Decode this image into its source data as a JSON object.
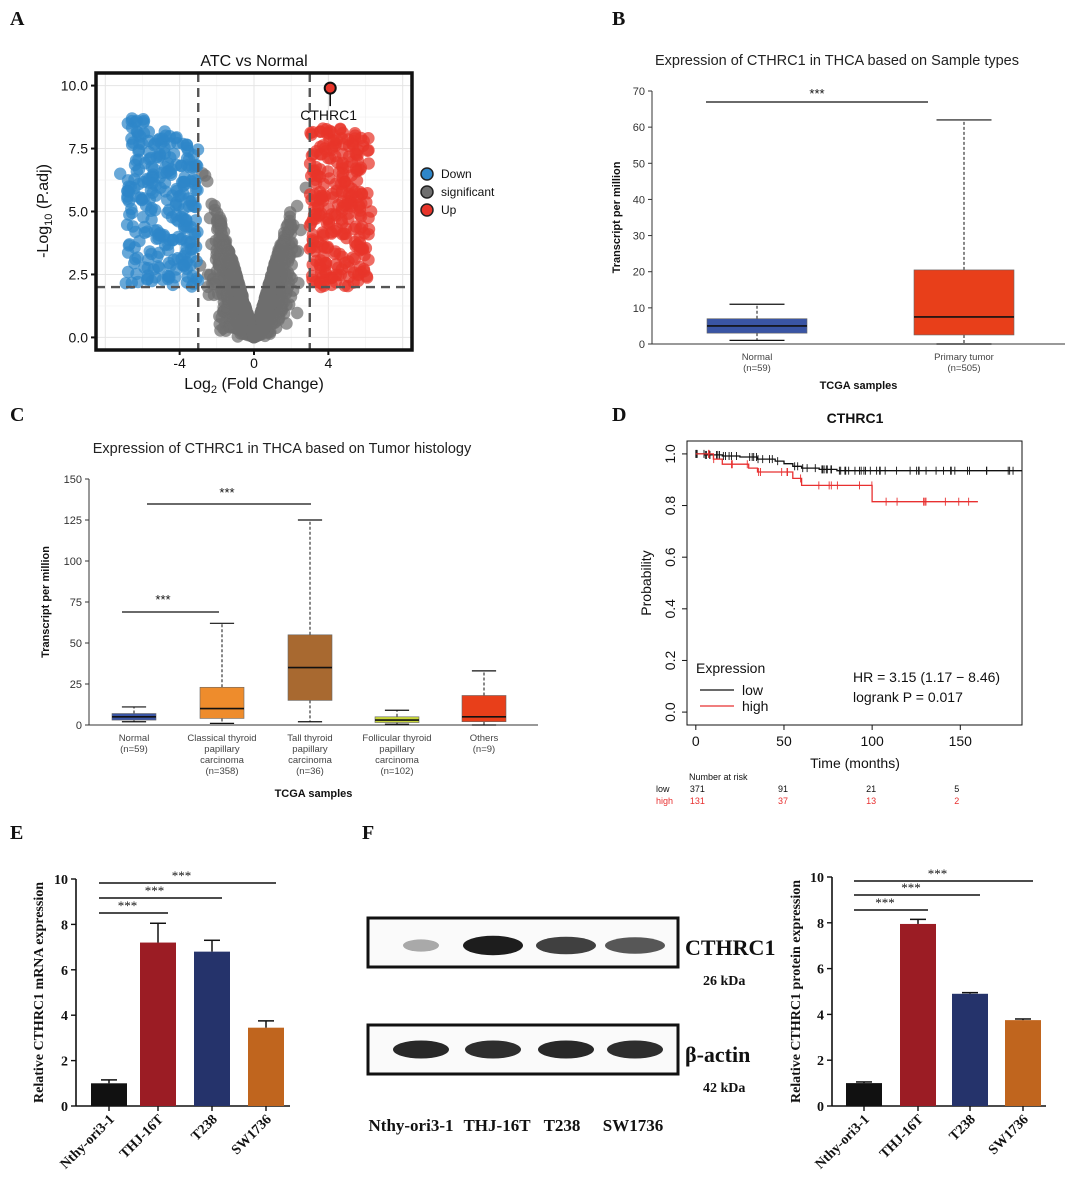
{
  "panel_labels": [
    "A",
    "B",
    "C",
    "D",
    "E",
    "F"
  ],
  "chart_data": [
    {
      "panel": "A",
      "type": "scatter",
      "title": "ATC vs Normal",
      "xlabel": "Log2 (Fold Change)",
      "ylabel": "-Log10 (P.adj)",
      "xlim": [
        -8.5,
        8.5
      ],
      "ylim": [
        -0.5,
        10.5
      ],
      "x_ticks": [
        "-4",
        "0",
        "4"
      ],
      "y_ticks": [
        "0.0",
        "2.5",
        "5.0",
        "7.5",
        "10.0"
      ],
      "thresholds": {
        "log2fc": 3,
        "neg_log10_padj": 2
      },
      "legend": [
        "Down",
        "significant",
        "Up"
      ],
      "highlight": {
        "label": "CTHRC1",
        "x": 4.1,
        "y": 9.9
      },
      "colors": {
        "down": "#2e86c9",
        "ns": "#6f6f6f",
        "up": "#e8352a"
      }
    },
    {
      "panel": "B",
      "type": "box",
      "title": "Expression of CTHRC1 in THCA based on Sample types",
      "xlabel": "TCGA samples",
      "ylabel": "Transcript per million",
      "ylim": [
        0,
        70
      ],
      "y_ticks": [
        "0",
        "10",
        "20",
        "30",
        "40",
        "50",
        "60",
        "70"
      ],
      "boxes": [
        {
          "name": "Normal",
          "n": "(n=59)",
          "min": 1,
          "q1": 3,
          "median": 5,
          "q3": 7,
          "max": 11,
          "color": "#3a55a4"
        },
        {
          "name": "Primary tumor",
          "n": "(n=505)",
          "min": 0,
          "q1": 2.5,
          "median": 7.5,
          "q3": 20.5,
          "max": 62,
          "color": "#e83f1a"
        }
      ],
      "significance": "***"
    },
    {
      "panel": "C",
      "type": "box",
      "title": "Expression of CTHRC1 in THCA based on Tumor histology",
      "xlabel": "TCGA samples",
      "ylabel": "Transcript per million",
      "ylim": [
        0,
        150
      ],
      "y_ticks": [
        "0",
        "25",
        "50",
        "75",
        "100",
        "125",
        "150"
      ],
      "boxes": [
        {
          "name": [
            "Normal"
          ],
          "n": "(n=59)",
          "min": 2,
          "q1": 3,
          "median": 5,
          "q3": 7,
          "max": 11,
          "color": "#3a55a4"
        },
        {
          "name": [
            "Classical thyroid",
            "papillary",
            "carcinoma"
          ],
          "n": "(n=358)",
          "min": 1,
          "q1": 4,
          "median": 10,
          "q3": 23,
          "max": 62,
          "color": "#ee8c2c"
        },
        {
          "name": [
            "Tall thyroid",
            "papillary",
            "carcinoma"
          ],
          "n": "(n=36)",
          "min": 2,
          "q1": 15,
          "median": 35,
          "q3": 55,
          "max": 125,
          "color": "#a86930"
        },
        {
          "name": [
            "Follicular thyroid",
            "papillary",
            "carcinoma"
          ],
          "n": "(n=102)",
          "min": 0.5,
          "q1": 1.5,
          "median": 3,
          "q3": 5,
          "max": 9,
          "color": "#c8d63a"
        },
        {
          "name": [
            "Others"
          ],
          "n": "(n=9)",
          "min": 0,
          "q1": 2,
          "median": 5,
          "q3": 18,
          "max": 33,
          "color": "#e83f1a"
        }
      ],
      "significance": [
        "***",
        "***"
      ]
    },
    {
      "panel": "D",
      "type": "line",
      "title": "CTHRC1",
      "xlabel": "Time (months)",
      "ylabel": "Probability",
      "xlim": [
        -5,
        185
      ],
      "ylim": [
        -0.05,
        1.05
      ],
      "x_ticks": [
        "0",
        "50",
        "100",
        "150"
      ],
      "y_ticks": [
        "0.0",
        "0.2",
        "0.4",
        "0.6",
        "0.8",
        "1.0"
      ],
      "legend_title": "Expression",
      "series": [
        {
          "name": "low",
          "color": "#111111",
          "x": [
            0,
            5,
            15,
            25,
            35,
            45,
            50,
            55,
            60,
            70,
            80,
            185
          ],
          "y": [
            1.0,
            0.996,
            0.992,
            0.988,
            0.98,
            0.972,
            0.962,
            0.952,
            0.945,
            0.94,
            0.935,
            0.935
          ]
        },
        {
          "name": "high",
          "color": "#e83030",
          "x": [
            0,
            10,
            15,
            30,
            35,
            55,
            60,
            100,
            160
          ],
          "y": [
            1.0,
            0.98,
            0.96,
            0.945,
            0.93,
            0.905,
            0.878,
            0.815,
            0.815
          ]
        }
      ],
      "annotations": [
        "HR = 3.15 (1.17 − 8.46)",
        "logrank P = 0.017"
      ],
      "risk_table": {
        "title": "Number at risk",
        "rows": [
          {
            "label": "low",
            "values": [
              "371",
              "91",
              "21",
              "5"
            ],
            "color": "#111111"
          },
          {
            "label": "high",
            "values": [
              "131",
              "37",
              "13",
              "2"
            ],
            "color": "#e83030"
          }
        ]
      }
    },
    {
      "panel": "E",
      "type": "bar",
      "ylabel": "Relative CTHRC1 mRNA expression",
      "ylim": [
        0,
        10
      ],
      "y_ticks": [
        "0",
        "2",
        "4",
        "6",
        "8",
        "10"
      ],
      "categories": [
        "Nthy-ori3-1",
        "THJ-16T",
        "T238",
        "SW1736"
      ],
      "values": [
        1.0,
        7.2,
        6.8,
        3.45
      ],
      "errors": [
        0.15,
        0.85,
        0.5,
        0.3
      ],
      "colors": [
        "#111111",
        "#9b1c24",
        "#25336b",
        "#c0651e"
      ],
      "significance": [
        "***",
        "***",
        "***"
      ]
    },
    {
      "panel": "F",
      "type": "bar",
      "ylabel": "Relative CTHRC1 protein expression",
      "ylim": [
        0,
        10
      ],
      "y_ticks": [
        "0",
        "2",
        "4",
        "6",
        "8",
        "10"
      ],
      "categories": [
        "Nthy-ori3-1",
        "THJ-16T",
        "T238",
        "SW1736"
      ],
      "values": [
        1.0,
        7.95,
        4.9,
        3.75
      ],
      "errors": [
        0.05,
        0.2,
        0.05,
        0.05
      ],
      "colors": [
        "#111111",
        "#9b1c24",
        "#25336b",
        "#c0651e"
      ],
      "significance": [
        "***",
        "***",
        "***"
      ]
    }
  ],
  "western_blot": {
    "bands": [
      {
        "protein": "CTHRC1",
        "size": "26 kDa",
        "intensity": [
          0.35,
          0.95,
          0.8,
          0.7
        ]
      },
      {
        "protein": "β-actin",
        "size": "42 kDa",
        "intensity": [
          0.9,
          0.88,
          0.9,
          0.88
        ]
      }
    ],
    "lanes": [
      "Nthy-ori3-1",
      "THJ-16T",
      "T238",
      "SW1736"
    ]
  }
}
